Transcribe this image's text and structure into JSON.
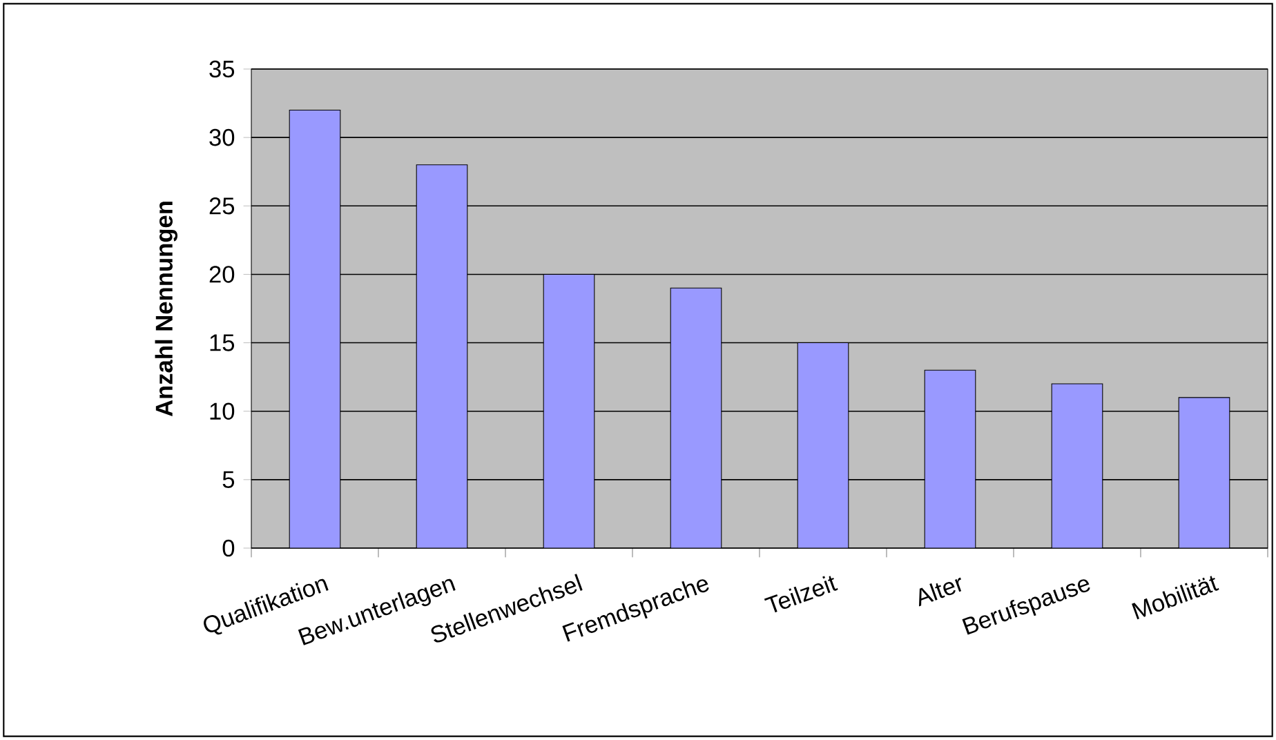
{
  "chart_data": {
    "type": "bar",
    "ylabel": "Anzahl Nennungen",
    "categories": [
      "Qualifikation",
      "Bew.unterlagen",
      "Stellenwechsel",
      "Fremdsprache",
      "Teilzeit",
      "Alter",
      "Berufspause",
      "Mobilität"
    ],
    "values": [
      32,
      28,
      20,
      19,
      15,
      13,
      12,
      11
    ],
    "color": "#9999ff",
    "ylim": [
      0,
      35
    ],
    "yticks": [
      0,
      5,
      10,
      15,
      20,
      25,
      30,
      35
    ],
    "grid": "y"
  }
}
